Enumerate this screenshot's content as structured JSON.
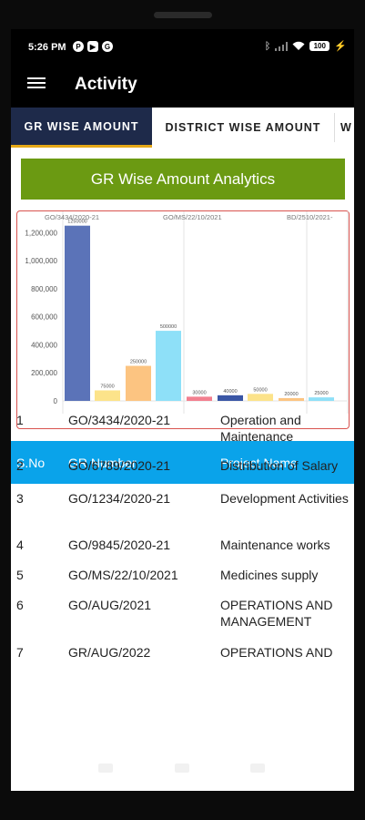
{
  "status": {
    "time": "5:26 PM",
    "battery": "100"
  },
  "app": {
    "title": "Activity"
  },
  "tabs": [
    {
      "label": "GR WISE AMOUNT"
    },
    {
      "label": "DISTRICT WISE AMOUNT"
    },
    {
      "label": "W"
    }
  ],
  "banner": {
    "title": "GR Wise Amount Analytics"
  },
  "chart_data": {
    "type": "bar",
    "top_labels": [
      "GO/3434/2020-21",
      "GO/MS/22/10/2021",
      "BD/2510/2021-"
    ],
    "yticks": [
      "1,200,000",
      "1,000,000",
      "800,000",
      "600,000",
      "400,000",
      "200,000",
      "0"
    ],
    "ylim": [
      0,
      1300000
    ],
    "values": [
      1250000,
      75000,
      250000,
      500000,
      30000,
      40000,
      50000,
      20000,
      25000
    ],
    "value_labels": [
      "1250000",
      "75000",
      "250000",
      "500000",
      "30000",
      "40000",
      "50000",
      "20000",
      "25000"
    ],
    "colors": [
      "#5b73b8",
      "#fce38a",
      "#fcc481",
      "#8ee0f8",
      "#f27f8f",
      "#3a56a5",
      "#fce38a",
      "#fcc481",
      "#8ee0f8"
    ]
  },
  "table": {
    "headers": [
      "S.No",
      "GR Number",
      "Project Name"
    ],
    "rows": [
      [
        "1",
        "GO/3434/2020-21",
        "Operation and Maintenance"
      ],
      [
        "2",
        "GO/6789/2020-21",
        "Distribution of Salary"
      ],
      [
        "3",
        "GO/1234/2020-21",
        "Development Activities"
      ],
      [
        "4",
        "GO/9845/2020-21",
        "Maintenance works"
      ],
      [
        "5",
        "GO/MS/22/10/2021",
        "Medicines supply"
      ],
      [
        "6",
        "GO/AUG/2021",
        "OPERATIONS AND MANAGEMENT"
      ],
      [
        "7",
        "GR/AUG/2022",
        "OPERATIONS AND"
      ]
    ]
  }
}
